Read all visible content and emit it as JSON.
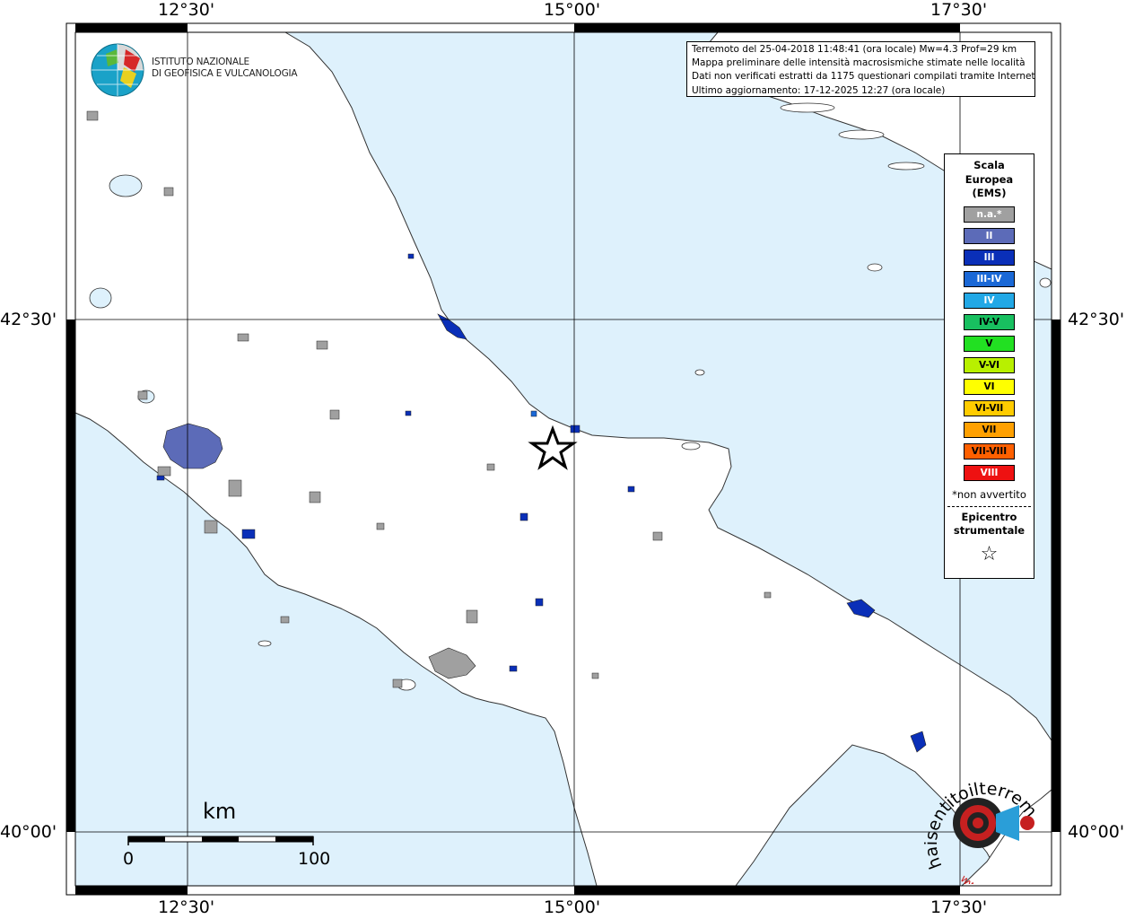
{
  "map": {
    "lon_labels": [
      "12°30'",
      "15°00'",
      "17°30'"
    ],
    "lat_labels": [
      "42°30'",
      "40°00'"
    ],
    "epicenter_symbol": "star"
  },
  "info": {
    "line1": "Terremoto del 25-04-2018 11:48:41 (ora locale) Mw=4.3 Prof=29 km",
    "line2": "Mappa preliminare delle intensità macrosismiche stimate nelle località",
    "line3": "Dati non verificati estratti da 1175 questionari compilati tramite Internet.",
    "line4": "Ultimo aggiornamento: 17-12-2025 12:27 (ora locale)"
  },
  "legend": {
    "title_line1": "Scala",
    "title_line2": "Europea",
    "title_line3": "(EMS)",
    "items": [
      {
        "label": "n.a.*",
        "color": "#a0a0a0",
        "text_color": "#ffffff"
      },
      {
        "label": "II",
        "color": "#5c6bb8",
        "text_color": "#ffffff"
      },
      {
        "label": "III",
        "color": "#0a2fb8",
        "text_color": "#ffffff"
      },
      {
        "label": "III-IV",
        "color": "#1a68d6",
        "text_color": "#ffffff"
      },
      {
        "label": "IV",
        "color": "#22a8e6",
        "text_color": "#ffffff"
      },
      {
        "label": "IV-V",
        "color": "#18c060",
        "text_color": "#000000"
      },
      {
        "label": "V",
        "color": "#22e022",
        "text_color": "#000000"
      },
      {
        "label": "V-VI",
        "color": "#b8f000",
        "text_color": "#000000"
      },
      {
        "label": "VI",
        "color": "#ffff00",
        "text_color": "#000000"
      },
      {
        "label": "VI-VII",
        "color": "#ffcc00",
        "text_color": "#000000"
      },
      {
        "label": "VII",
        "color": "#ffa000",
        "text_color": "#000000"
      },
      {
        "label": "VII-VIII",
        "color": "#ff6000",
        "text_color": "#000000"
      },
      {
        "label": "VIII",
        "color": "#ee1111",
        "text_color": "#ffffff"
      }
    ],
    "note": "*non avvertito",
    "epicenter_line1": "Epicentro",
    "epicenter_line2": "strumentale",
    "epicenter_star": "☆"
  },
  "logo": {
    "ingv_line1": "ISTITUTO NAZIONALE",
    "ingv_line2": "DI GEOFISICA E VULCANOLOGIA",
    "hsit_name": "haisentitoilterremoto.it",
    "hsit_url": "www."
  },
  "scalebar": {
    "unit": "km",
    "min_label": "0",
    "max_label": "100"
  },
  "colors": {
    "sea": "#def1fc",
    "land": "#ffffff",
    "na_gray": "#a0a0a0",
    "ii_blue": "#5c6bb8",
    "iii_blue": "#0a2fb8"
  }
}
